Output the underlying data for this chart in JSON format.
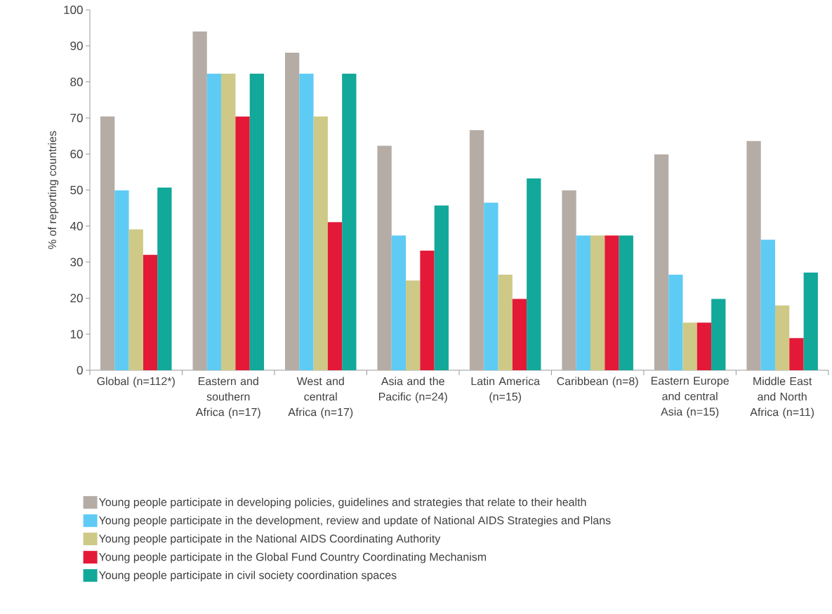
{
  "chart_data": {
    "type": "bar",
    "ylabel": "% of reporting countries",
    "categories": [
      "Global (n=112*)",
      "Eastern and southern Africa (n=17)",
      "West and central Africa (n=17)",
      "Asia and the Pacific (n=24)",
      "Latin America (n=15)",
      "Caribbean (n=8)",
      "Eastern Europe and central Asia (n=15)",
      "Middle East and North Africa (n=11)"
    ],
    "series": [
      {
        "name": "Young people participate in developing policies, guidelines and strategies that relate to their health",
        "color": "#b5aca6",
        "values": [
          70.4,
          94.0,
          88.1,
          62.3,
          66.6,
          49.9,
          59.9,
          63.6
        ]
      },
      {
        "name": "Young people participate in the development, review and update of National AIDS Strategies and Plans",
        "color": "#5ecbf5",
        "values": [
          49.9,
          82.3,
          82.3,
          37.4,
          46.5,
          37.4,
          26.5,
          36.2
        ]
      },
      {
        "name": "Young people participate in the National AIDS Coordinating Authority",
        "color": "#cec986",
        "values": [
          39.1,
          82.3,
          70.4,
          24.9,
          26.5,
          37.4,
          13.2,
          18.0
        ]
      },
      {
        "name": "Young people participate in the Global Fund Country Coordinating Mechanism",
        "color": "#e31937",
        "values": [
          32.0,
          70.4,
          41.1,
          33.2,
          19.8,
          37.4,
          13.2,
          8.9
        ]
      },
      {
        "name": "Young people participate in civil society coordination spaces",
        "color": "#12a89a",
        "values": [
          50.7,
          82.3,
          82.3,
          45.7,
          53.2,
          37.4,
          19.8,
          27.1
        ]
      }
    ],
    "ylim": [
      0,
      100
    ],
    "yticks": [
      0,
      10,
      20,
      30,
      40,
      50,
      60,
      70,
      80,
      90,
      100
    ],
    "legend": "bottom"
  }
}
